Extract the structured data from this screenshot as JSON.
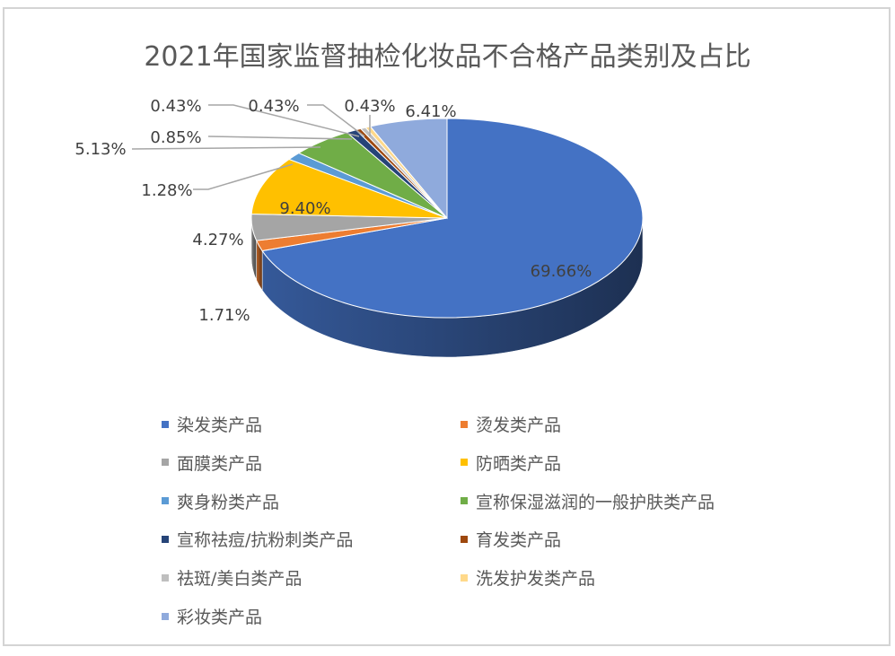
{
  "chart_data": {
    "type": "pie",
    "title": "2021年国家监督抽检化妆品不合格产品类别及占比",
    "legend_position": "bottom",
    "slices": [
      {
        "name": "染发类产品",
        "value": 69.66,
        "label": "69.66%",
        "color": "#4472c4"
      },
      {
        "name": "烫发类产品",
        "value": 1.71,
        "label": "1.71%",
        "color": "#ed7d31"
      },
      {
        "name": "面膜类产品",
        "value": 4.27,
        "label": "4.27%",
        "color": "#a5a5a5"
      },
      {
        "name": "防晒类产品",
        "value": 9.4,
        "label": "9.40%",
        "color": "#ffc000"
      },
      {
        "name": "爽身粉类产品",
        "value": 1.28,
        "label": "1.28%",
        "color": "#5b9bd5"
      },
      {
        "name": "宣称保湿滋润的一般护肤类产品",
        "value": 5.13,
        "label": "5.13%",
        "color": "#70ad47"
      },
      {
        "name": "宣称祛痘/抗粉刺类产品",
        "value": 0.85,
        "label": "0.85%",
        "color": "#264478"
      },
      {
        "name": "育发类产品",
        "value": 0.43,
        "label": "0.43%",
        "color": "#9e480e"
      },
      {
        "name": "祛斑/美白类产品",
        "value": 0.43,
        "label": "0.43%",
        "color": "#bfbfbf"
      },
      {
        "name": "洗发护发类产品",
        "value": 0.43,
        "label": "0.43%",
        "color": "#ffd98a"
      },
      {
        "name": "彩妆类产品",
        "value": 6.41,
        "label": "6.41%",
        "color": "#8faadc"
      }
    ]
  }
}
